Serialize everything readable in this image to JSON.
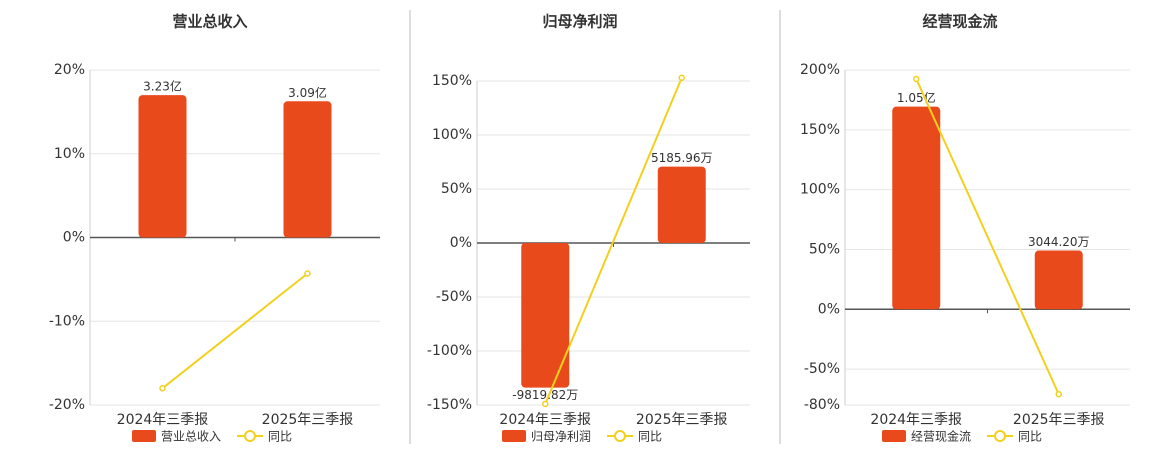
{
  "chart_data": [
    {
      "type": "bar-line",
      "title": "营业总收入",
      "categories": [
        "2024年三季报",
        "2025年三季报"
      ],
      "series": [
        {
          "name": "营业总收入",
          "type": "bar",
          "axis": "y2",
          "color": "#e84a1c",
          "values": [
            323000000,
            309000000
          ],
          "value_labels": [
            "3.23亿",
            "3.09亿"
          ]
        },
        {
          "name": "同比",
          "type": "line",
          "color": "#f2d01e",
          "values": [
            -18,
            -4.3
          ]
        }
      ],
      "ylim": [
        -20,
        20
      ],
      "yticks": [
        {
          "value": 20,
          "label": "20%"
        },
        {
          "value": 10,
          "label": "10%"
        },
        {
          "value": 0,
          "label": "0%"
        },
        {
          "value": -10,
          "label": "-10%"
        },
        {
          "value": -20,
          "label": "-20%"
        }
      ],
      "y2lim": [
        -380000000,
        380000000
      ],
      "grid": true
    },
    {
      "type": "bar-line",
      "title": "归母净利润",
      "categories": [
        "2024年三季报",
        "2025年三季报"
      ],
      "series": [
        {
          "name": "归母净利润",
          "type": "bar",
          "axis": "y2",
          "color": "#e84a1c",
          "values": [
            -98198200,
            51859600
          ],
          "value_labels": [
            "-9819.82万",
            "5185.96万"
          ]
        },
        {
          "name": "同比",
          "type": "line",
          "color": "#f2d01e",
          "values": [
            -149,
            153
          ]
        }
      ],
      "ylim": [
        -150,
        150
      ],
      "yticks": [
        {
          "value": 150,
          "label": "150%"
        },
        {
          "value": 100,
          "label": "100%"
        },
        {
          "value": 50,
          "label": "50%"
        },
        {
          "value": 0,
          "label": "0%"
        },
        {
          "value": -50,
          "label": "-50%"
        },
        {
          "value": -100,
          "label": "-100%"
        },
        {
          "value": -150,
          "label": "-150%"
        }
      ],
      "y2lim": [
        -110000000,
        110000000
      ],
      "grid": true
    },
    {
      "type": "bar-line",
      "title": "经营现金流",
      "categories": [
        "2024年三季报",
        "2025年三季报"
      ],
      "series": [
        {
          "name": "经营现金流",
          "type": "bar",
          "axis": "y2",
          "color": "#e84a1c",
          "values": [
            105000000,
            30442000
          ],
          "value_labels": [
            "1.05亿",
            "3044.20万"
          ]
        },
        {
          "name": "同比",
          "type": "line",
          "color": "#f2d01e",
          "values": [
            192.5,
            -71
          ]
        }
      ],
      "ylim": [
        -80,
        200
      ],
      "yticks": [
        {
          "value": 200,
          "label": "200%"
        },
        {
          "value": 150,
          "label": "150%"
        },
        {
          "value": 100,
          "label": "100%"
        },
        {
          "value": 50,
          "label": "50%"
        },
        {
          "value": 0,
          "label": "0%"
        },
        {
          "value": -50,
          "label": "-50%"
        },
        {
          "value": -80,
          "label": "-80%"
        }
      ],
      "y2lim": [
        -49600000,
        124000000
      ],
      "grid": true
    }
  ]
}
